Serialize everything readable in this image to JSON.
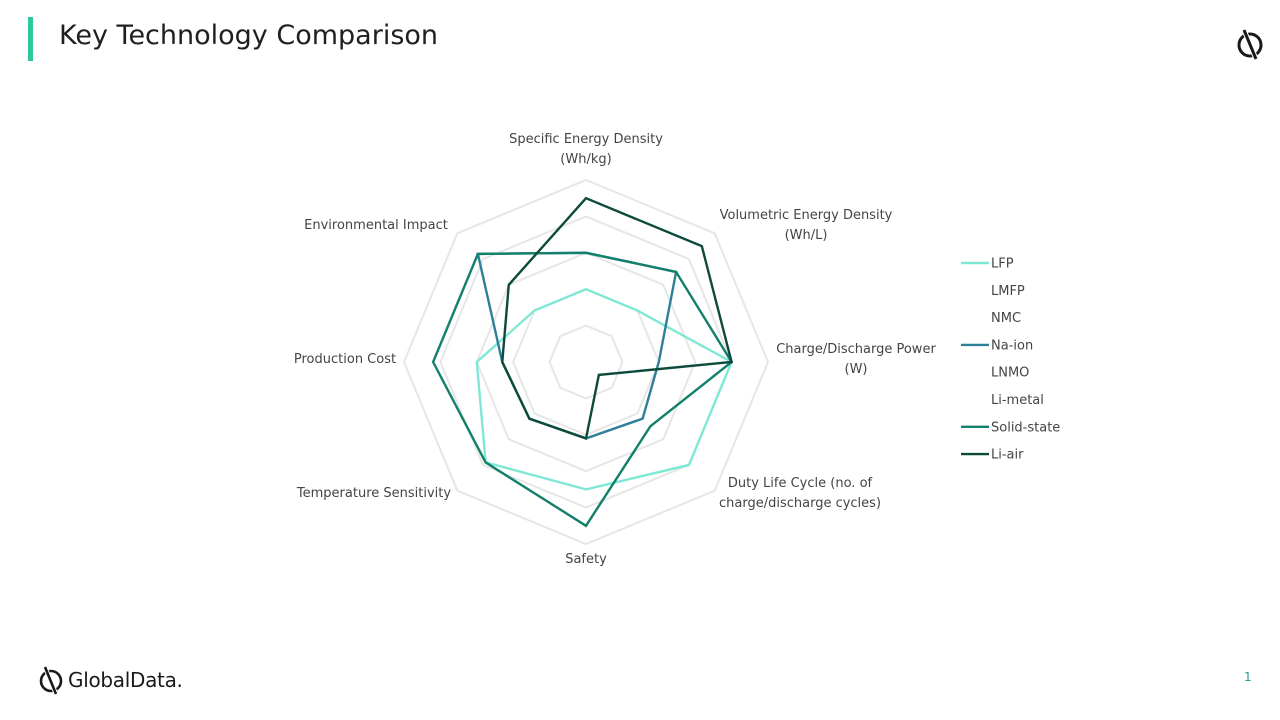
{
  "header": {
    "title": "Key Technology Comparison"
  },
  "footer": {
    "brand": "GlobalData.",
    "page_number": "1"
  },
  "icons": {
    "corner": "globaldata-logo-icon",
    "footer": "globaldata-logo-icon"
  },
  "colors": {
    "accent": "#2cc99e"
  },
  "chart_data": {
    "type": "radar",
    "axes": [
      [
        "Specific Energy Density",
        "(Wh/kg)"
      ],
      [
        "Volumetric Energy Density",
        "(Wh/L)"
      ],
      [
        "Charge/Discharge Power",
        "(W)"
      ],
      [
        "Duty Life Cycle (no. of",
        "charge/discharge cycles)"
      ],
      [
        "Safety"
      ],
      [
        "Temperature Sensitivity"
      ],
      [
        "Production Cost"
      ],
      [
        "Environmental Impact"
      ]
    ],
    "rmax": 5,
    "grid_levels": [
      1,
      2,
      3,
      4,
      5
    ],
    "series": [
      {
        "name": "LFP",
        "color": "#7ee8d4",
        "values": [
          2.0,
          2.0,
          4.0,
          4.0,
          3.5,
          3.9,
          3.0,
          2.0
        ]
      },
      {
        "name": "LMFP",
        "color": "#ffffff",
        "values": []
      },
      {
        "name": "NMC",
        "color": "#ffffff",
        "values": []
      },
      {
        "name": "Na-ion",
        "color": "#2f7f9a",
        "values": [
          3.0,
          3.5,
          2.0,
          2.2,
          2.1,
          2.2,
          2.3,
          4.2
        ]
      },
      {
        "name": "LNMO",
        "color": "#ffffff",
        "values": []
      },
      {
        "name": "Li-metal",
        "color": "#ffffff",
        "values": []
      },
      {
        "name": "Solid-state",
        "color": "#12806a",
        "values": [
          3.0,
          3.5,
          4.0,
          2.5,
          4.5,
          3.9,
          4.2,
          4.2
        ]
      },
      {
        "name": "Li-air",
        "color": "#0d4a3c",
        "values": [
          4.5,
          4.5,
          4.0,
          0.5,
          2.1,
          2.2,
          2.3,
          3.0
        ]
      }
    ],
    "legend": "right"
  }
}
